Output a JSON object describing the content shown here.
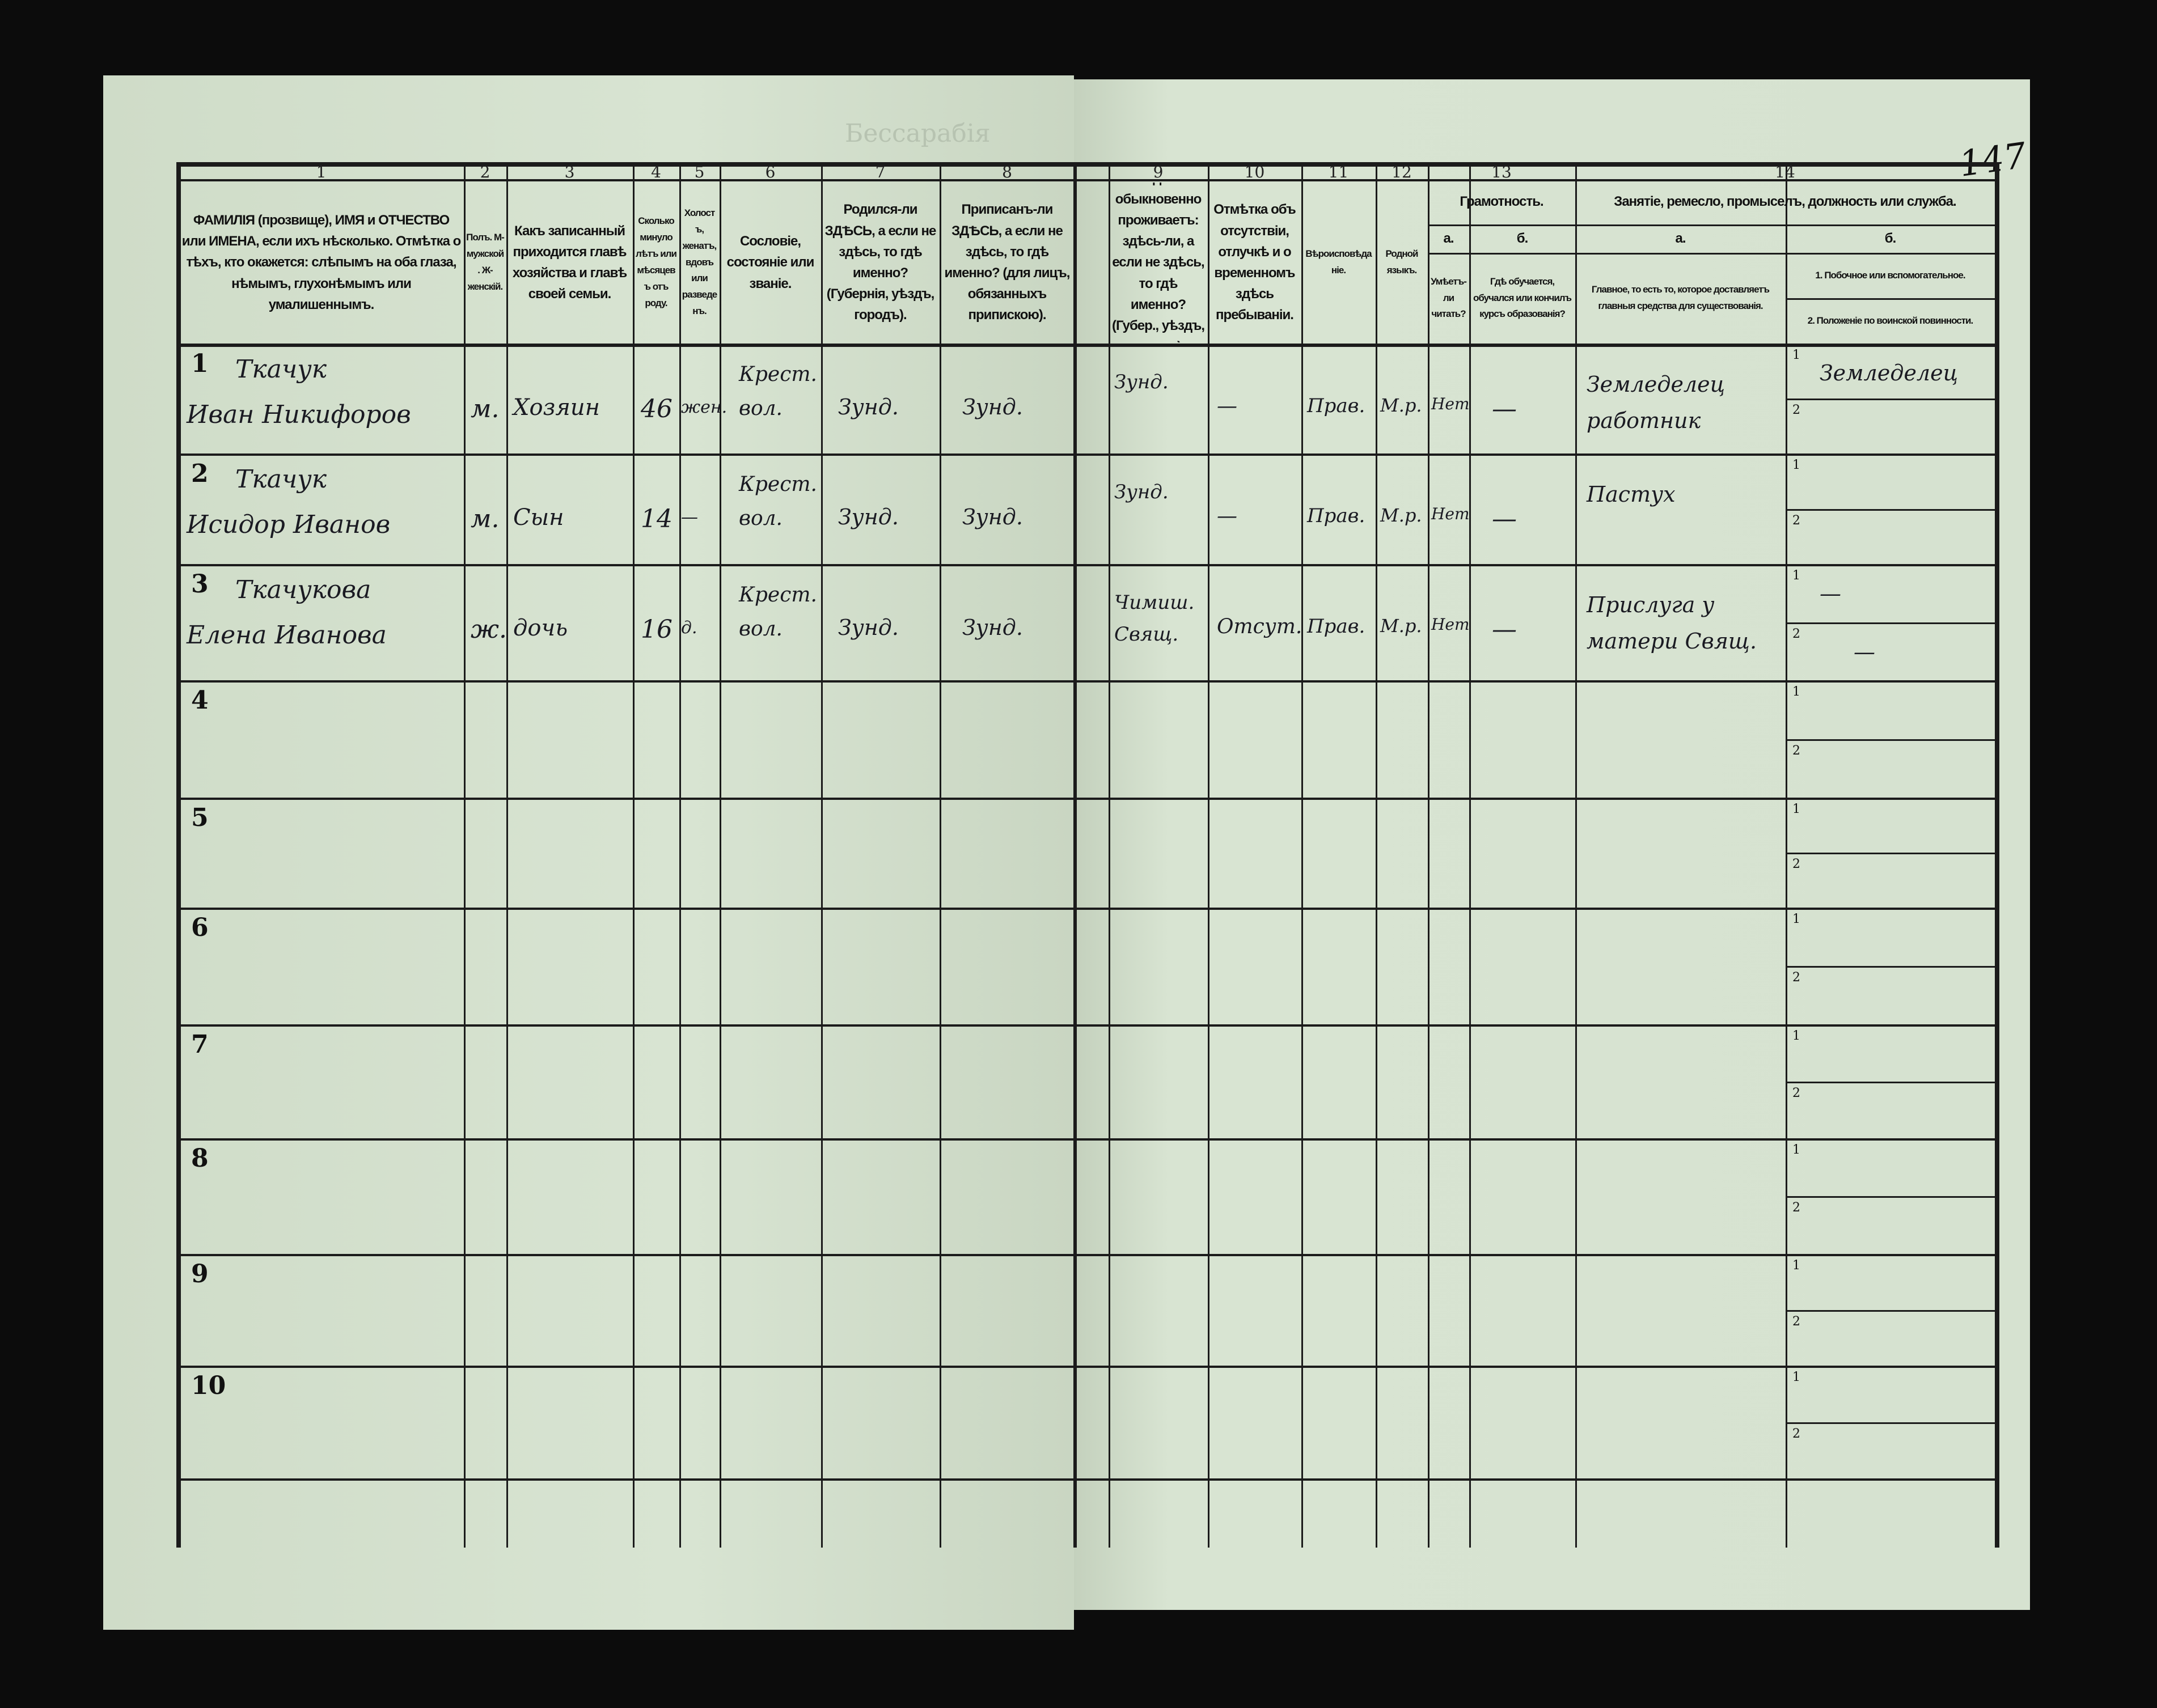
{
  "page_number": "147",
  "faded_title": "Бессарабія",
  "header": {
    "columns": [
      {
        "num": "1",
        "text": "ФАМИЛІЯ (прозвище), ИМЯ и ОТЧЕСТВО или ИМЕНА, если ихъ нѣсколько. Отмѣтка о тѣхъ, кто окажется: слѣпымъ на оба глаза, нѣмымъ, глухонѣмымъ или умалишеннымъ."
      },
      {
        "num": "2",
        "text": "Полъ. М-мужской. Ж-женскій."
      },
      {
        "num": "3",
        "text": "Какъ записанный приходится главѣ хозяйства и главѣ своей семьи."
      },
      {
        "num": "4",
        "text": "Сколько минуло лѣтъ или мѣсяцевъ отъ роду."
      },
      {
        "num": "5",
        "text": "Холостъ, женатъ, вдовъ или разведенъ."
      },
      {
        "num": "6",
        "text": "Сословіе, состояніе или званіе."
      },
      {
        "num": "7",
        "text": "Родился-ли ЗДѢСЬ, а если не здѣсь, то гдѣ именно? (Губернія, уѣздъ, городъ)."
      },
      {
        "num": "8",
        "text": "Приписанъ-ли ЗДѢСЬ, а если не здѣсь, то гдѣ именно? (для лицъ, обязанныхъ припискою)."
      },
      {
        "num": "9",
        "text": "Гдѣ обыкновенно проживаетъ: здѣсь-ли, а если не здѣсь, то гдѣ именно? (Губер., уѣздъ, городъ)."
      },
      {
        "num": "10",
        "text": "Отмѣтка объ отсутствіи, отлучкѣ и о временномъ здѣсь пребываніи."
      },
      {
        "num": "11",
        "text": "Вѣроисповѣданіе."
      },
      {
        "num": "12",
        "text": "Родной языкъ."
      },
      {
        "num": "13",
        "group": "Грамотность.",
        "a": "а.",
        "a_text": "Умѣетъ-ли читать?",
        "b": "б.",
        "b_text": "Гдѣ обучается, обучался или кончилъ курсъ образованія?"
      },
      {
        "num": "14",
        "group": "Занятіе, ремесло, промыселъ, должность или служба.",
        "a": "а.",
        "a_text": "Главное, то есть то, которое доставляетъ главныя средства для существованія.",
        "b": "б.",
        "b1_text": "1. Побочное или вспомогательное.",
        "b2_text": "2. Положеніе по воинской повинности."
      }
    ]
  },
  "rows": [
    {
      "num": "1",
      "surname": "Ткачук",
      "name": "Иван Никифоров",
      "sex": "м.",
      "relation": "Хозяин",
      "age": "46",
      "marital": "жен.",
      "estate": "Крест. вол.",
      "born": "Зунд.",
      "registered": "Зунд.",
      "residence": "Зунд.",
      "absence": "—",
      "religion": "Прав.",
      "language": "М.р.",
      "literate": "Нет",
      "school": "—",
      "occupation": "Земледелец работник",
      "side1": "Земледелец",
      "side2": ""
    },
    {
      "num": "2",
      "surname": "Ткачук",
      "name": "Исидор Иванов",
      "sex": "м.",
      "relation": "Сын",
      "age": "14",
      "marital": "—",
      "estate": "Крест. вол.",
      "born": "Зунд.",
      "registered": "Зунд.",
      "residence": "Зунд.",
      "absence": "—",
      "religion": "Прав.",
      "language": "М.р.",
      "literate": "Нет",
      "school": "—",
      "occupation": "Пастух",
      "side1": "",
      "side2": ""
    },
    {
      "num": "3",
      "surname": "Ткачукова",
      "name": "Елена Иванова",
      "sex": "ж.",
      "relation": "дочь",
      "age": "16",
      "marital": "д.",
      "estate": "Крест. вол.",
      "born": "Зунд.",
      "registered": "Зунд.",
      "residence": "Чимиш. Свящ.",
      "absence": "Отсут.",
      "religion": "Прав.",
      "language": "М.р.",
      "literate": "Нет",
      "school": "—",
      "occupation": "Прислуга у матери Свящ.",
      "side1": "—",
      "side2": "—"
    },
    {
      "num": "4"
    },
    {
      "num": "5"
    },
    {
      "num": "6"
    },
    {
      "num": "7"
    },
    {
      "num": "8"
    },
    {
      "num": "9"
    },
    {
      "num": "10"
    }
  ],
  "sub_labels": {
    "one": "1",
    "two": "2"
  }
}
